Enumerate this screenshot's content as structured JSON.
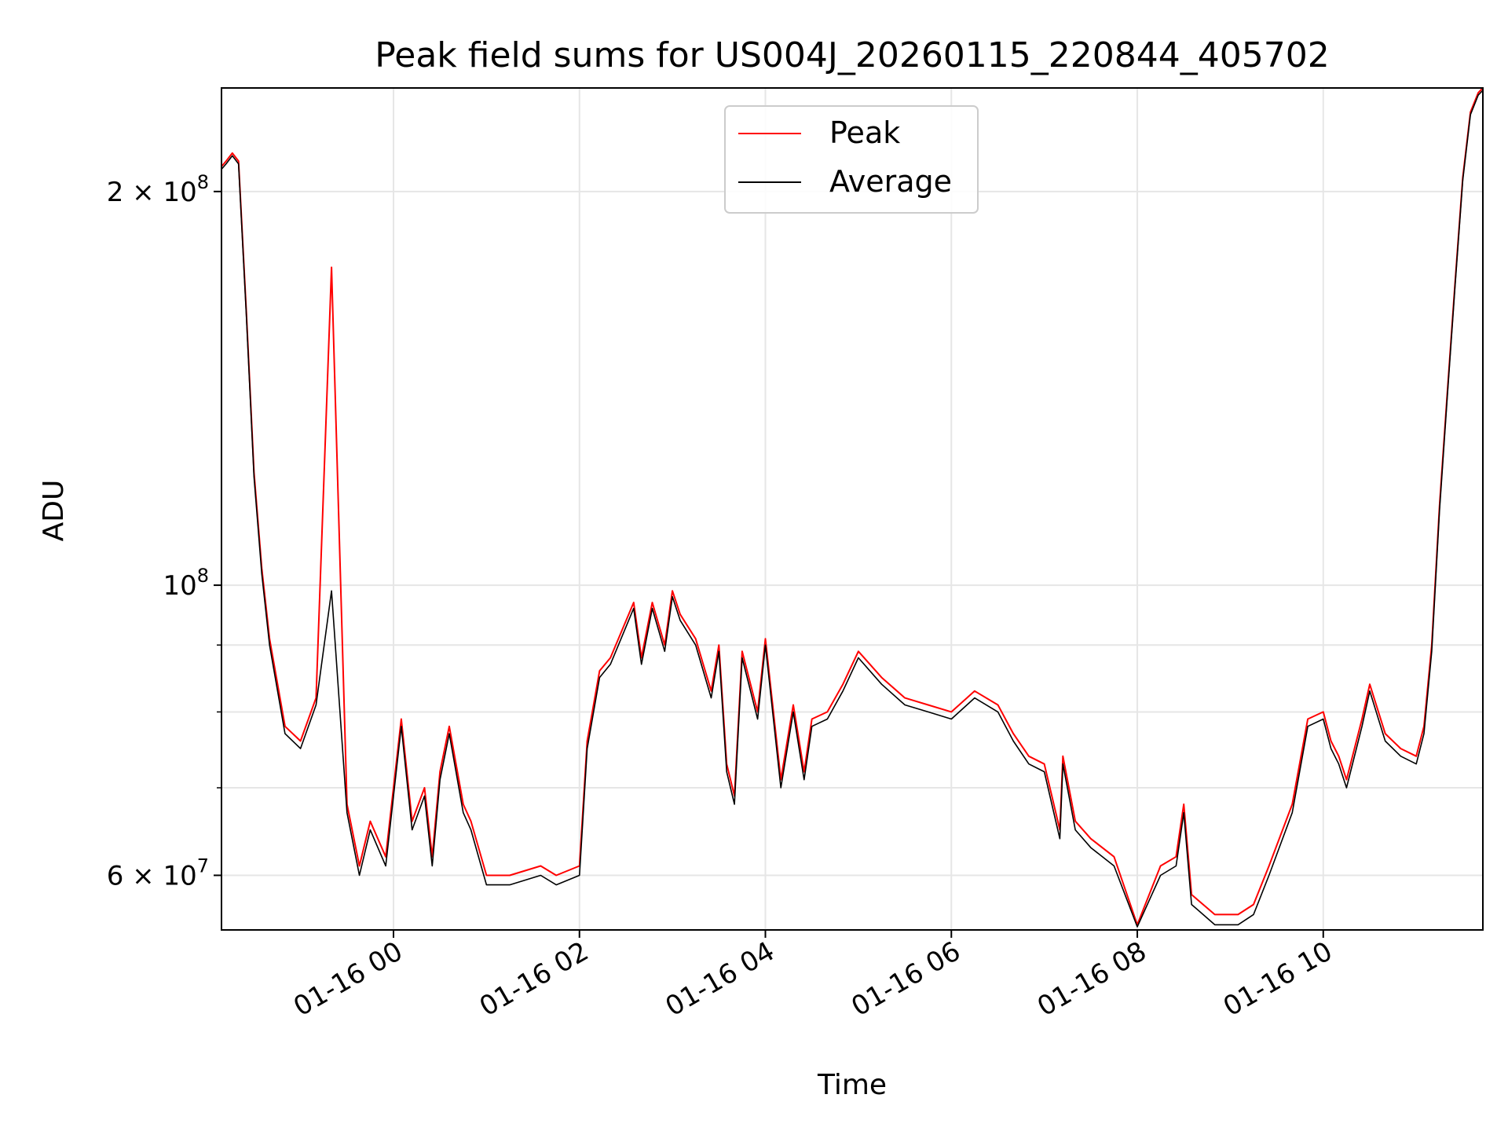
{
  "chart_data": {
    "type": "line",
    "title": "Peak field sums for US004J_20260115_220844_405702",
    "xlabel": "Time",
    "ylabel": "ADU",
    "y_scale": "log",
    "ylim": [
      54500000,
      240000000
    ],
    "xlim": [
      "2026-01-15 22:09",
      "2026-01-16 11:43"
    ],
    "grid": true,
    "legend_position": "top-center",
    "x_tick_labels": [
      "01-16 00",
      "01-16 02",
      "01-16 04",
      "01-16 06",
      "01-16 08",
      "01-16 10"
    ],
    "x_ticks": [
      "2026-01-16 00:00",
      "2026-01-16 02:00",
      "2026-01-16 04:00",
      "2026-01-16 06:00",
      "2026-01-16 08:00",
      "2026-01-16 10:00"
    ],
    "y_tick_labels": [
      {
        "value": 200000000,
        "base": "2 × 10",
        "exp": "8"
      },
      {
        "value": 100000000,
        "base": "10",
        "exp": "8"
      },
      {
        "value": 60000000,
        "base": "6 × 10",
        "exp": "7"
      }
    ],
    "y_minor_ticks": [
      70000000,
      80000000,
      90000000
    ],
    "x": [
      "2026-01-15 22:09",
      "2026-01-15 22:12",
      "2026-01-15 22:16",
      "2026-01-15 22:20",
      "2026-01-15 22:25",
      "2026-01-15 22:30",
      "2026-01-15 22:35",
      "2026-01-15 22:40",
      "2026-01-15 22:50",
      "2026-01-15 23:00",
      "2026-01-15 23:10",
      "2026-01-15 23:20",
      "2026-01-15 23:30",
      "2026-01-15 23:38",
      "2026-01-15 23:45",
      "2026-01-15 23:55",
      "2026-01-16 00:05",
      "2026-01-16 00:12",
      "2026-01-16 00:20",
      "2026-01-16 00:25",
      "2026-01-16 00:30",
      "2026-01-16 00:36",
      "2026-01-16 00:45",
      "2026-01-16 00:50",
      "2026-01-16 01:00",
      "2026-01-16 01:15",
      "2026-01-16 01:35",
      "2026-01-16 01:45",
      "2026-01-16 02:00",
      "2026-01-16 02:05",
      "2026-01-16 02:13",
      "2026-01-16 02:20",
      "2026-01-16 02:35",
      "2026-01-16 02:40",
      "2026-01-16 02:47",
      "2026-01-16 02:55",
      "2026-01-16 03:00",
      "2026-01-16 03:05",
      "2026-01-16 03:15",
      "2026-01-16 03:25",
      "2026-01-16 03:30",
      "2026-01-16 03:35",
      "2026-01-16 03:40",
      "2026-01-16 03:45",
      "2026-01-16 03:55",
      "2026-01-16 04:00",
      "2026-01-16 04:10",
      "2026-01-16 04:18",
      "2026-01-16 04:25",
      "2026-01-16 04:30",
      "2026-01-16 04:40",
      "2026-01-16 04:50",
      "2026-01-16 05:00",
      "2026-01-16 05:15",
      "2026-01-16 05:30",
      "2026-01-16 05:45",
      "2026-01-16 06:00",
      "2026-01-16 06:15",
      "2026-01-16 06:30",
      "2026-01-16 06:40",
      "2026-01-16 06:50",
      "2026-01-16 07:00",
      "2026-01-16 07:10",
      "2026-01-16 07:12",
      "2026-01-16 07:20",
      "2026-01-16 07:30",
      "2026-01-16 07:45",
      "2026-01-16 08:00",
      "2026-01-16 08:15",
      "2026-01-16 08:25",
      "2026-01-16 08:30",
      "2026-01-16 08:35",
      "2026-01-16 08:50",
      "2026-01-16 09:05",
      "2026-01-16 09:15",
      "2026-01-16 09:25",
      "2026-01-16 09:40",
      "2026-01-16 09:50",
      "2026-01-16 10:00",
      "2026-01-16 10:05",
      "2026-01-16 10:10",
      "2026-01-16 10:15",
      "2026-01-16 10:25",
      "2026-01-16 10:30",
      "2026-01-16 10:40",
      "2026-01-16 10:50",
      "2026-01-16 11:00",
      "2026-01-16 11:05",
      "2026-01-16 11:10",
      "2026-01-16 11:15",
      "2026-01-16 11:20",
      "2026-01-16 11:25",
      "2026-01-16 11:30",
      "2026-01-16 11:35",
      "2026-01-16 11:40",
      "2026-01-16 11:43"
    ],
    "series": [
      {
        "name": "Peak",
        "color": "#ff0000",
        "values": [
          209000000,
          211000000,
          214000000,
          211000000,
          162000000,
          122000000,
          103000000,
          91000000,
          78000000,
          76000000,
          82000000,
          175000000,
          68000000,
          61000000,
          66000000,
          62000000,
          79000000,
          66000000,
          70000000,
          62000000,
          72000000,
          78000000,
          68000000,
          66000000,
          60000000,
          60000000,
          61000000,
          60000000,
          61000000,
          76000000,
          86000000,
          88000000,
          97000000,
          88000000,
          97000000,
          90000000,
          99000000,
          95000000,
          91000000,
          83000000,
          90000000,
          73000000,
          69000000,
          89000000,
          80000000,
          91000000,
          71000000,
          81000000,
          72000000,
          79000000,
          80000000,
          84000000,
          89000000,
          85000000,
          82000000,
          81000000,
          80000000,
          83000000,
          81000000,
          77000000,
          74000000,
          73000000,
          65000000,
          74000000,
          66000000,
          64000000,
          62000000,
          55000000,
          61000000,
          62000000,
          68000000,
          58000000,
          56000000,
          56000000,
          57000000,
          61000000,
          68000000,
          79000000,
          80000000,
          76000000,
          74000000,
          71000000,
          79000000,
          84000000,
          77000000,
          75000000,
          74000000,
          78000000,
          90000000,
          115000000,
          140000000,
          170000000,
          205000000,
          230000000,
          238000000,
          240000000
        ]
      },
      {
        "name": "Average",
        "color": "#000000",
        "values": [
          208000000,
          210000000,
          213000000,
          210000000,
          161000000,
          121000000,
          102000000,
          90000000,
          77000000,
          75000000,
          81000000,
          99000000,
          67000000,
          60000000,
          65000000,
          61000000,
          78000000,
          65000000,
          69000000,
          61000000,
          71000000,
          77000000,
          67000000,
          65000000,
          59000000,
          59000000,
          60000000,
          59000000,
          60000000,
          75000000,
          85000000,
          87000000,
          96000000,
          87000000,
          96000000,
          89000000,
          98000000,
          94000000,
          90000000,
          82000000,
          89000000,
          72000000,
          68000000,
          88000000,
          79000000,
          90000000,
          70000000,
          80000000,
          71000000,
          78000000,
          79000000,
          83000000,
          88000000,
          84000000,
          81000000,
          80000000,
          79000000,
          82000000,
          80000000,
          76000000,
          73000000,
          72000000,
          64000000,
          73000000,
          65000000,
          63000000,
          61000000,
          54800000,
          60000000,
          61000000,
          67000000,
          57000000,
          55000000,
          55000000,
          56000000,
          60000000,
          67000000,
          78000000,
          79000000,
          75000000,
          73000000,
          70000000,
          78000000,
          83000000,
          76000000,
          74000000,
          73000000,
          77000000,
          89000000,
          114000000,
          139000000,
          169000000,
          204000000,
          229000000,
          237000000,
          239000000
        ]
      }
    ]
  }
}
